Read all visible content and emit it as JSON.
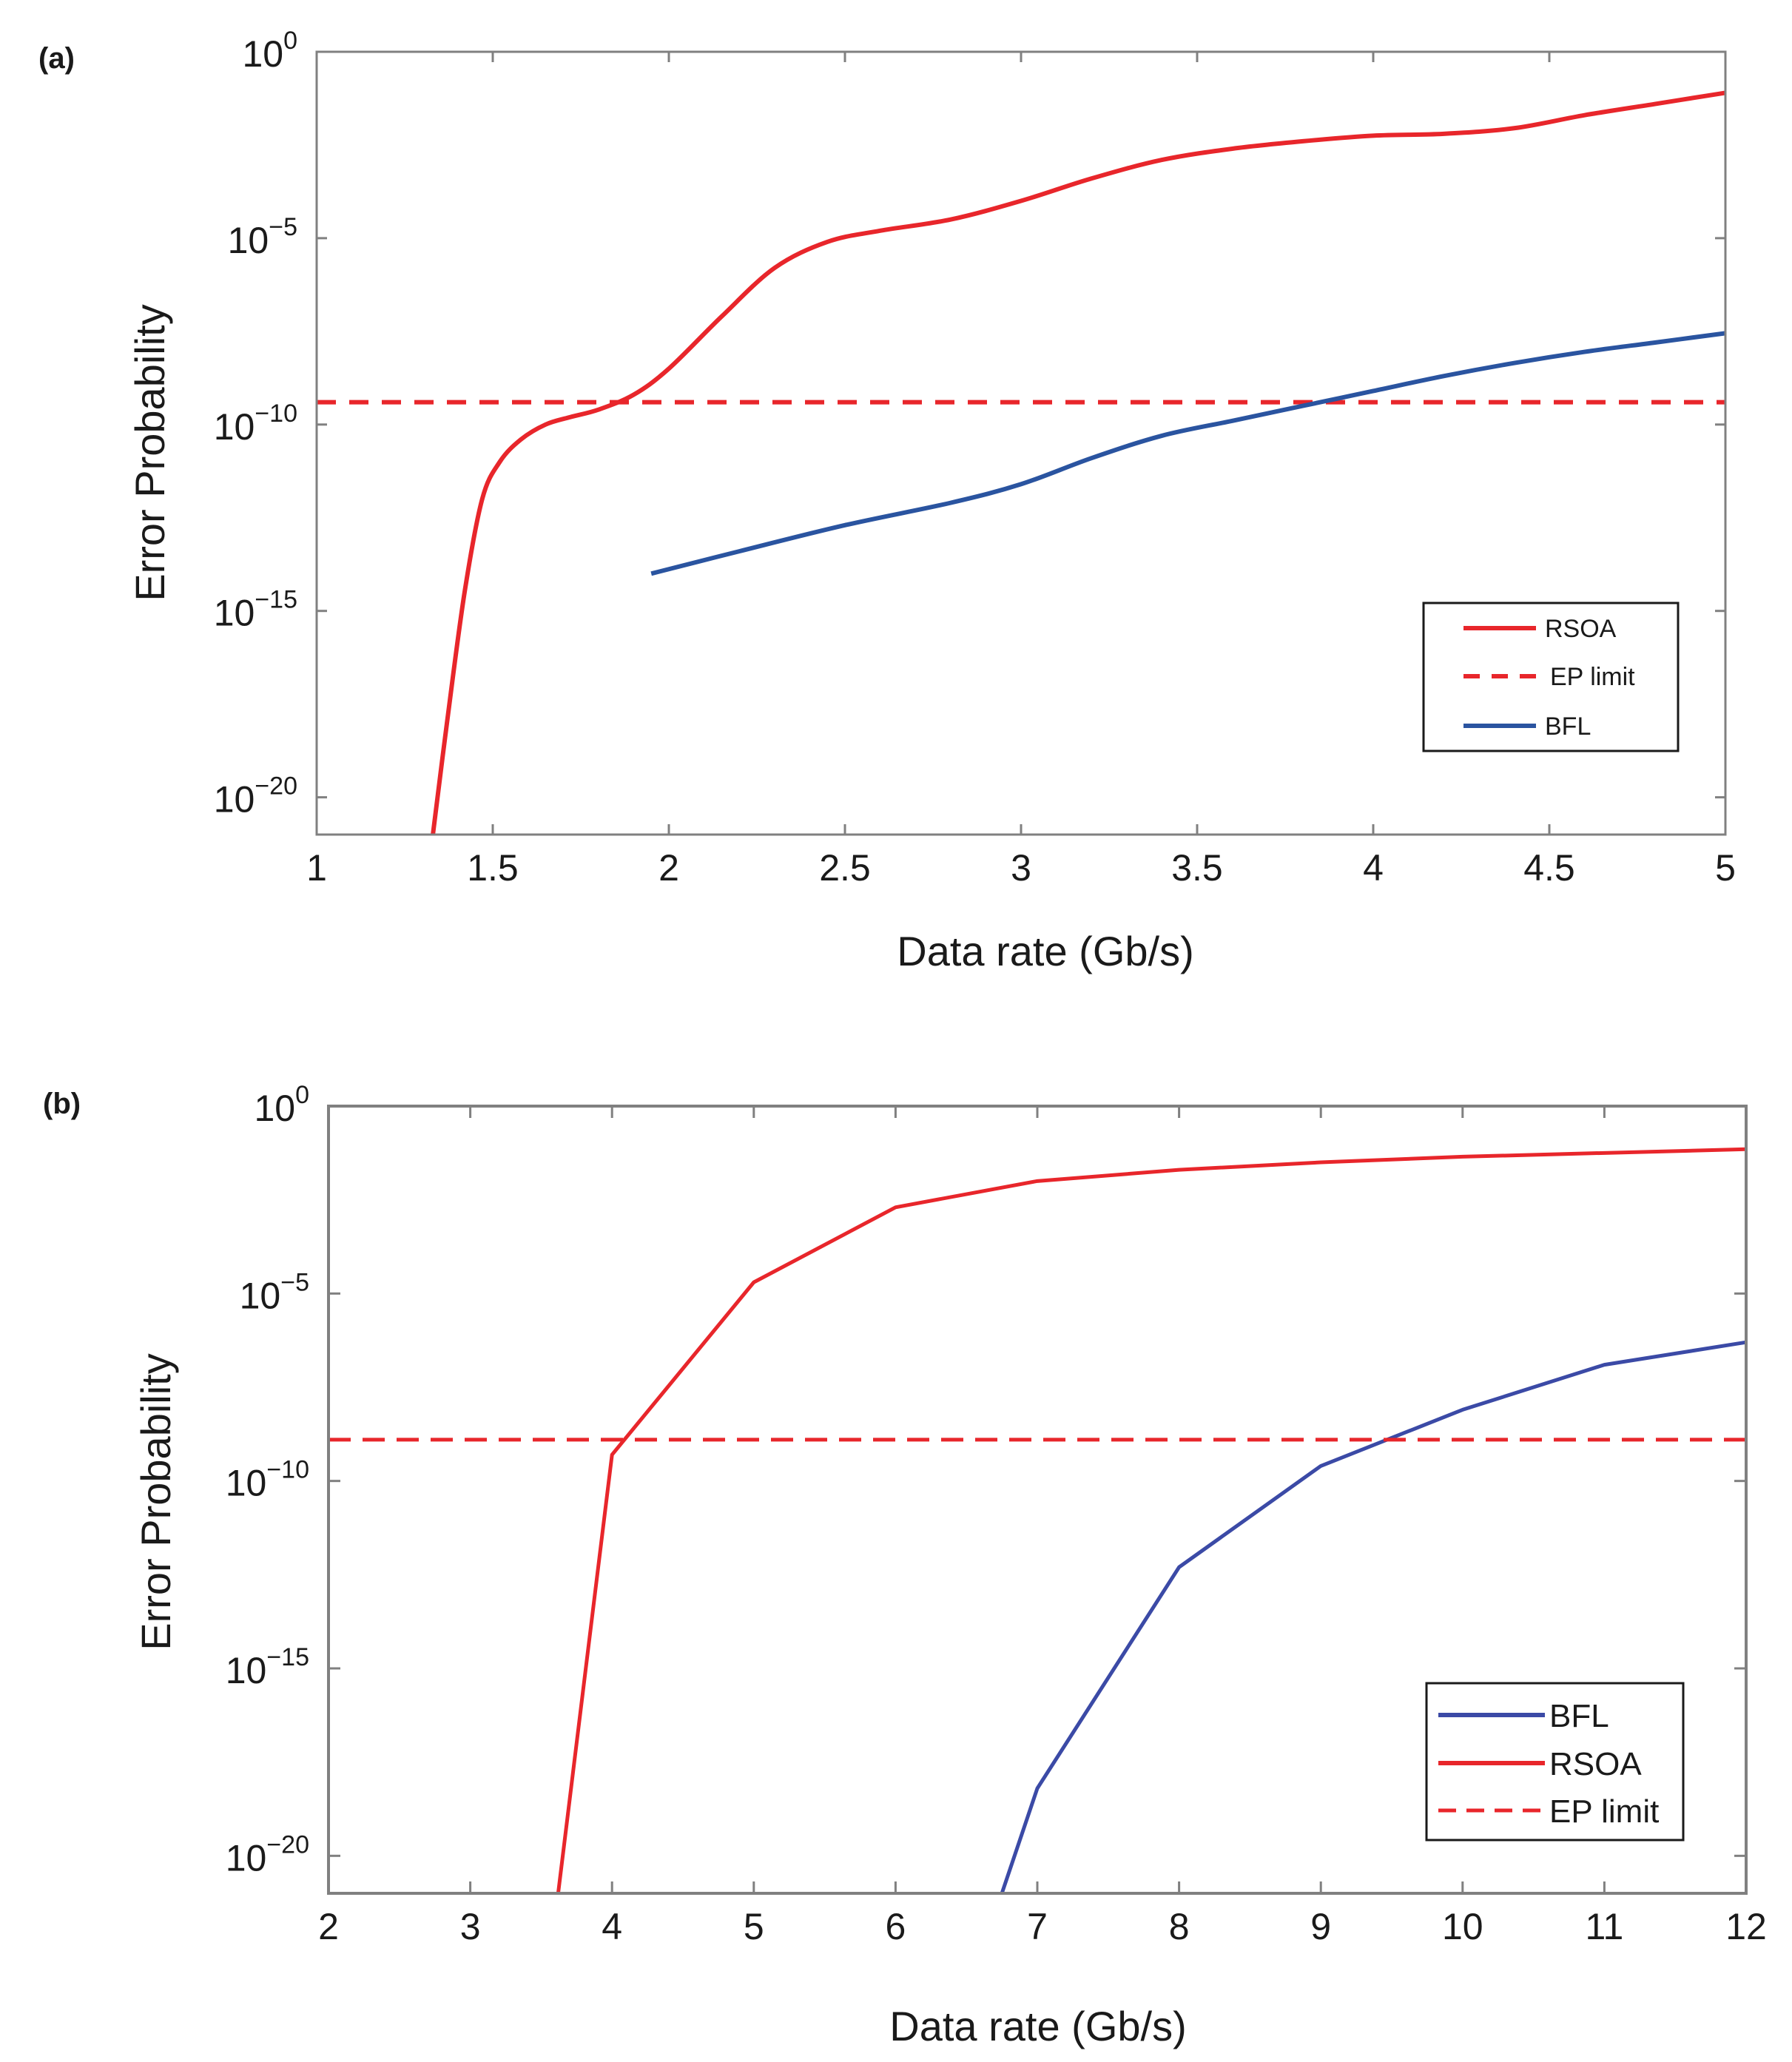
{
  "colors": {
    "rsoa": "#e8262b",
    "bfl_a": "#2a54a0",
    "bfl_b": "#3b4aa6",
    "axis": "#808080",
    "text": "#1a1a1a"
  },
  "chart_data": [
    {
      "panel_label": "(a)",
      "type": "line",
      "xlabel": "Data rate (Gb/s)",
      "ylabel": "Error Probability",
      "xlim": [
        1,
        5
      ],
      "ylim_log10": [
        -21,
        0
      ],
      "y_scale": "log",
      "x_ticks": [
        "1",
        "1.5",
        "2",
        "2.5",
        "3",
        "3.5",
        "4",
        "4.5",
        "5"
      ],
      "y_ticks": [
        {
          "base": "10",
          "exp": "0"
        },
        {
          "base": "10",
          "exp": "−5"
        },
        {
          "base": "10",
          "exp": "−10"
        },
        {
          "base": "10",
          "exp": "−15"
        },
        {
          "base": "10",
          "exp": "−20"
        }
      ],
      "grid": false,
      "legend_position": "bottom-right",
      "legend": [
        "RSOA",
        "EP limit",
        "BFL"
      ],
      "series": [
        {
          "name": "RSOA",
          "style": "solid",
          "color": "#e8262b",
          "x": [
            1.33,
            1.37,
            1.42,
            1.47,
            1.52,
            1.58,
            1.65,
            1.72,
            1.8,
            1.9,
            2.0,
            2.15,
            2.3,
            2.45,
            2.6,
            2.8,
            3.0,
            3.2,
            3.4,
            3.6,
            3.8,
            4.0,
            4.2,
            4.4,
            4.6,
            4.8,
            5.0
          ],
          "log10_y": [
            -21,
            -18,
            -14.5,
            -12,
            -11,
            -10.4,
            -10.0,
            -9.8,
            -9.6,
            -9.2,
            -8.5,
            -7.1,
            -5.8,
            -5.1,
            -4.8,
            -4.5,
            -4.0,
            -3.4,
            -2.9,
            -2.6,
            -2.4,
            -2.25,
            -2.2,
            -2.05,
            -1.7,
            -1.4,
            -1.1
          ]
        },
        {
          "name": "EP limit",
          "style": "dashed",
          "color": "#e8262b",
          "x": [
            1,
            5
          ],
          "log10_y": [
            -9.4,
            -9.4
          ]
        },
        {
          "name": "BFL",
          "style": "solid",
          "color": "#2a54a0",
          "x": [
            1.95,
            2.2,
            2.5,
            2.8,
            3.0,
            3.2,
            3.4,
            3.6,
            3.8,
            4.0,
            4.2,
            4.4,
            4.6,
            4.8,
            5.0
          ],
          "log10_y": [
            -14,
            -13.4,
            -12.7,
            -12.1,
            -11.6,
            -10.9,
            -10.3,
            -9.9,
            -9.5,
            -9.1,
            -8.7,
            -8.35,
            -8.05,
            -7.8,
            -7.55
          ]
        }
      ]
    },
    {
      "panel_label": "(b)",
      "type": "line",
      "xlabel": "Data rate (Gb/s)",
      "ylabel": "Error Probability",
      "xlim": [
        2,
        12
      ],
      "ylim_log10": [
        -21,
        0
      ],
      "y_scale": "log",
      "x_ticks": [
        "2",
        "3",
        "4",
        "5",
        "6",
        "7",
        "8",
        "9",
        "10",
        "11",
        "12"
      ],
      "y_ticks": [
        {
          "base": "10",
          "exp": "0"
        },
        {
          "base": "10",
          "exp": "−5"
        },
        {
          "base": "10",
          "exp": "−10"
        },
        {
          "base": "10",
          "exp": "−15"
        },
        {
          "base": "10",
          "exp": "−20"
        }
      ],
      "grid": false,
      "legend_position": "bottom-right",
      "legend": [
        "BFL",
        "RSOA",
        "EP limit"
      ],
      "series": [
        {
          "name": "BFL",
          "style": "solid",
          "color": "#3b4aa6",
          "x": [
            6.75,
            7,
            8,
            9,
            10,
            11,
            12
          ],
          "log10_y": [
            -21,
            -18.2,
            -12.3,
            -9.6,
            -8.1,
            -6.9,
            -6.3
          ]
        },
        {
          "name": "RSOA",
          "style": "solid",
          "color": "#e8262b",
          "x": [
            3.62,
            4,
            5,
            6,
            7,
            8,
            9,
            10,
            11,
            12
          ],
          "log10_y": [
            -21,
            -9.3,
            -4.7,
            -2.7,
            -2.0,
            -1.7,
            -1.5,
            -1.35,
            -1.25,
            -1.15
          ]
        },
        {
          "name": "EP limit",
          "style": "dashed",
          "color": "#e8262b",
          "x": [
            2,
            12
          ],
          "log10_y": [
            -8.9,
            -8.9
          ]
        }
      ]
    }
  ]
}
